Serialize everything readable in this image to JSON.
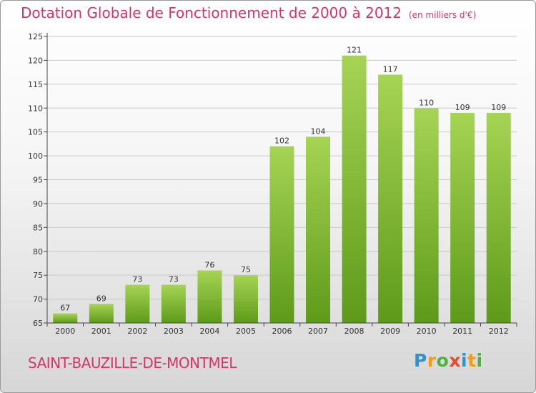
{
  "header": {
    "title": "Dotation Globale de Fonctionnement de 2000 à 2012",
    "unit": "(en milliers d'€)"
  },
  "footer": {
    "commune": "SAINT-BAUZILLE-DE-MONTMEL",
    "logo_letters": [
      "P",
      "r",
      "o",
      "x",
      "i",
      "t",
      "i"
    ],
    "logo_colors": [
      "#2a93d5",
      "#f29a1a",
      "#4fb040",
      "#e84a2a",
      "#2a93d5",
      "#f29a1a",
      "#4fb040"
    ]
  },
  "colors": {
    "bar_light": "#a6d454",
    "bar_dark": "#5e9a1a",
    "accent": "#d6346b",
    "grid": "#c8c8c8",
    "axis": "#444444",
    "label": "#333333"
  },
  "chart_data": {
    "type": "bar",
    "title": "Dotation Globale de Fonctionnement de 2000 à 2012",
    "subtitle": "(en milliers d'€)",
    "categories": [
      "2000",
      "2001",
      "2002",
      "2003",
      "2004",
      "2005",
      "2006",
      "2007",
      "2008",
      "2009",
      "2010",
      "2011",
      "2012"
    ],
    "values": [
      67,
      69,
      73,
      73,
      76,
      75,
      102,
      104,
      121,
      117,
      110,
      109,
      109
    ],
    "ylim": [
      65,
      125
    ],
    "yticks": [
      65,
      70,
      75,
      80,
      85,
      90,
      95,
      100,
      105,
      110,
      115,
      120,
      125
    ],
    "grid": true,
    "xlabel": "",
    "ylabel": ""
  }
}
